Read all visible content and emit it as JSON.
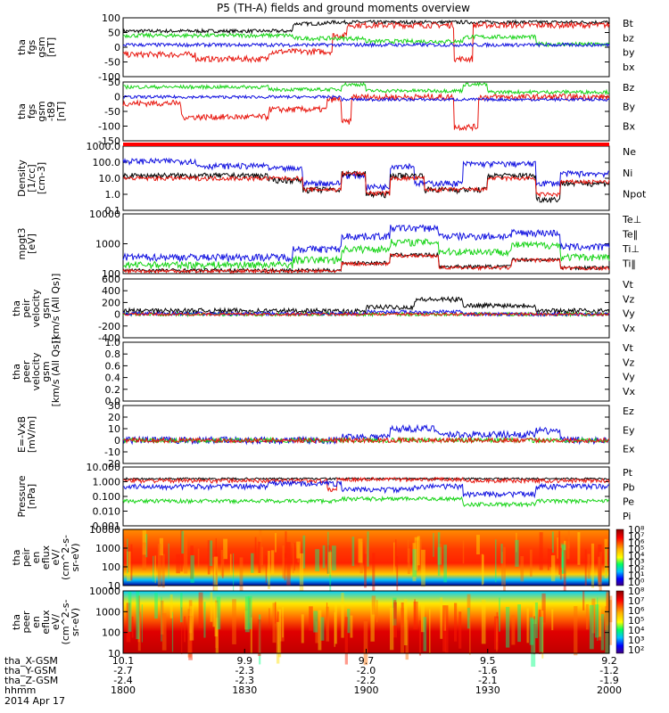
{
  "title": "P5 (TH-A) fields and ground moments overview",
  "date": "2014 Apr 17",
  "colors": {
    "black": "#000000",
    "red": "#e8170f",
    "green": "#17d417",
    "blue": "#1212e0"
  },
  "panels": [
    {
      "id": "fgs",
      "ylabel": [
        "tha",
        "fgs",
        "gsm",
        "[nT]"
      ],
      "ymin": -100,
      "ymax": 100,
      "ticks": [
        "100",
        "50",
        "0",
        "-50",
        "-100"
      ],
      "legend": [
        [
          "Bt",
          "black"
        ],
        [
          "bz",
          "red"
        ],
        [
          "by",
          "green"
        ],
        [
          "bx",
          "blue"
        ]
      ]
    },
    {
      "id": "fgs2",
      "ylabel": [
        "tha",
        "fgs",
        "gsm",
        "-t89",
        "[nT]"
      ],
      "ymin": -175,
      "ymax": 60,
      "ticks": [
        "50",
        "0",
        "-50",
        "-100",
        "-150"
      ],
      "legend": [
        [
          "Bz",
          "red"
        ],
        [
          "By",
          "green"
        ],
        [
          "Bx",
          "blue"
        ]
      ]
    },
    {
      "id": "density",
      "ylabel": [
        "Density",
        "[1/cc]",
        "[cm-3]"
      ],
      "ymin": 0.1,
      "ymax": 1000,
      "log": true,
      "ticks": [
        "1000.0",
        "100.0",
        "10.0",
        "1.0",
        "0.1"
      ],
      "legend": [
        [
          "Ne",
          "red"
        ],
        [
          "Ni",
          "black"
        ],
        [
          "Npot",
          "blue"
        ]
      ]
    },
    {
      "id": "temp",
      "ylabel": [
        "mpgt3",
        "[eV]"
      ],
      "ymin": 60,
      "ymax": 10000,
      "log": true,
      "ticks": [
        "10000",
        "1000",
        "100"
      ],
      "legend": [
        [
          "Te⊥",
          "red"
        ],
        [
          "Te‖",
          "black"
        ],
        [
          "Ti⊥",
          "green"
        ],
        [
          "Ti‖",
          "green"
        ]
      ]
    },
    {
      "id": "peir_v",
      "ylabel": [
        "tha",
        "peir",
        "velocity",
        "gsm",
        "[km/s (All Qs)]"
      ],
      "ymin": -400,
      "ymax": 600,
      "ticks": [
        "600",
        "400",
        "200",
        "0",
        "-200",
        "-400"
      ],
      "legend": [
        [
          "Vt",
          "black"
        ],
        [
          "Vz",
          "red"
        ],
        [
          "Vy",
          "green"
        ],
        [
          "Vx",
          "blue"
        ]
      ]
    },
    {
      "id": "peer_v",
      "ylabel": [
        "tha",
        "peer",
        "velocity",
        "gsm",
        "[km/s (All Qs)]"
      ],
      "ymin": 0,
      "ymax": 1,
      "ticks": [
        "1.0",
        "0.8",
        "0.6",
        "0.4",
        "0.2",
        "0.0"
      ],
      "legend": [
        [
          "Vt",
          "black"
        ],
        [
          "Vz",
          "red"
        ],
        [
          "Vy",
          "green"
        ],
        [
          "Vx",
          "blue"
        ]
      ]
    },
    {
      "id": "efield",
      "ylabel": [
        "E=-VxB",
        "[mV/m]"
      ],
      "ymin": -20,
      "ymax": 30,
      "ticks": [
        "30",
        "20",
        "10",
        "0",
        "-10",
        "-20"
      ],
      "legend": [
        [
          "Ez",
          "red"
        ],
        [
          "Ey",
          "green"
        ],
        [
          "Ex",
          "blue"
        ]
      ]
    },
    {
      "id": "pressure",
      "ylabel": [
        "Pressure",
        "[nPa]"
      ],
      "ymin": 0.001,
      "ymax": 10,
      "log": true,
      "ticks": [
        "10.000",
        "1.000",
        "0.100",
        "0.010",
        "0.001"
      ],
      "legend": [
        [
          "Pt",
          "black"
        ],
        [
          "Pb",
          "red"
        ],
        [
          "Pe",
          "green"
        ],
        [
          "Pi",
          "blue"
        ]
      ]
    },
    {
      "id": "peir_en",
      "ylabel": [
        "tha",
        "peir",
        "en",
        "eflux",
        "eV/",
        "(cm^2-s-",
        "sr-eV)"
      ],
      "ticks": [
        "10000",
        "1000",
        "100",
        "10"
      ],
      "cbar": [
        "10⁸",
        "10⁷",
        "10⁶",
        "10⁵",
        "10⁴",
        "10³",
        "10²",
        "10¹",
        "10⁰"
      ]
    },
    {
      "id": "peer_en",
      "ylabel": [
        "tha",
        "peer",
        "en",
        "eflux",
        "eV/",
        "(cm^2-s-",
        "sr-eV)"
      ],
      "ticks": [
        "10000",
        "1000",
        "100",
        "10"
      ],
      "cbar": [
        "10⁸",
        "10⁷",
        "10⁶",
        "10⁵",
        "10⁴",
        "10³",
        "10²"
      ]
    }
  ],
  "xaxis": {
    "rows": [
      {
        "label": "tha_X-GSM",
        "values": [
          "10.1",
          "9.9",
          "9.7",
          "9.5",
          "9.2"
        ]
      },
      {
        "label": "tha_Y-GSM",
        "values": [
          "-2.7",
          "-2.3",
          "-2.0",
          "-1.6",
          "-1.2"
        ]
      },
      {
        "label": "tha_Z-GSM",
        "values": [
          "-2.4",
          "-2.3",
          "-2.2",
          "-2.1",
          "-1.9"
        ]
      },
      {
        "label": "hhmm",
        "values": [
          "1800",
          "1830",
          "1900",
          "1930",
          "2000"
        ]
      }
    ],
    "start_hhmm": "1800",
    "end_hhmm": "2000"
  },
  "chart_data": {
    "type": "line",
    "title": "P5 (TH-A) fields and ground moments overview",
    "x": [
      "1800",
      "1830",
      "1900",
      "1930",
      "2000"
    ],
    "xlabel": "hhmm",
    "series": [
      {
        "name": "Bt",
        "values": [
          55,
          70,
          85,
          80,
          90
        ]
      },
      {
        "name": "bz",
        "values": [
          -30,
          -25,
          70,
          -35,
          75
        ]
      },
      {
        "name": "by",
        "values": [
          40,
          35,
          25,
          30,
          10
        ]
      },
      {
        "name": "bx",
        "values": [
          10,
          15,
          10,
          10,
          5
        ]
      },
      {
        "name": "Ni",
        "values": [
          20,
          15,
          2,
          5,
          10
        ]
      },
      {
        "name": "Npot",
        "values": [
          80,
          60,
          8,
          40,
          20
        ]
      },
      {
        "name": "Vt",
        "values": [
          60,
          50,
          150,
          300,
          60
        ]
      },
      {
        "name": "Ex",
        "values": [
          0,
          0,
          5,
          15,
          3
        ]
      },
      {
        "name": "Pt",
        "values": [
          1.5,
          1.5,
          1.5,
          1.8,
          2.0
        ]
      },
      {
        "name": "Pe",
        "values": [
          0.05,
          0.06,
          0.08,
          0.03,
          0.05
        ]
      }
    ]
  }
}
